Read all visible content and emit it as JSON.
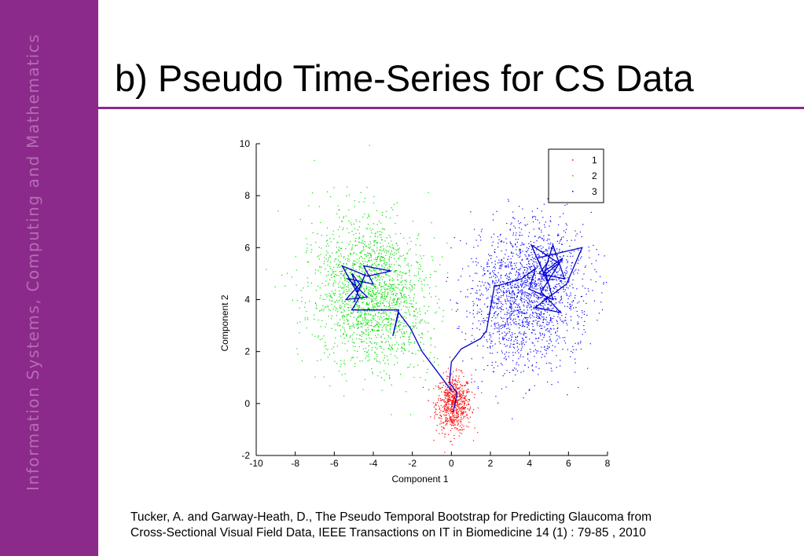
{
  "slide": {
    "sidebar_text": "Information Systems, Computing and Mathematics",
    "title": "b) Pseudo Time-Series for CS Data",
    "citation_line1": "Tucker, A. and Garway-Heath, D., The Pseudo Temporal Bootstrap for Predicting Glaucoma from",
    "citation_line2": "Cross-Sectional Visual Field Data, IEEE Transactions on IT in Biomedicine 14 (1) : 79-85 , 2010"
  },
  "colors": {
    "sidebar": "#8b2a8a",
    "cluster_1": "#ff0000",
    "cluster_2": "#00dd00",
    "cluster_3": "#0000ff",
    "trajectory": "#0000cc"
  },
  "chart_data": {
    "type": "scatter",
    "xlabel": "Component 1",
    "ylabel": "Component 2",
    "xlim": [
      -10,
      8
    ],
    "ylim": [
      -2,
      10
    ],
    "xticks": [
      -10,
      -8,
      -6,
      -4,
      -2,
      0,
      2,
      4,
      6,
      8
    ],
    "yticks": [
      -2,
      0,
      2,
      4,
      6,
      8,
      10
    ],
    "grid": false,
    "legend_position": "top-right",
    "series": [
      {
        "name": "1",
        "color": "#ff0000",
        "count": 700,
        "center": [
          0.1,
          0.0
        ],
        "spread": [
          0.45,
          0.55
        ],
        "tilt": 0
      },
      {
        "name": "2",
        "color": "#00dd00",
        "count": 1900,
        "center": [
          -4.2,
          4.3
        ],
        "spread": [
          1.5,
          1.35
        ],
        "tilt": -0.55
      },
      {
        "name": "3",
        "color": "#0000ff",
        "count": 1900,
        "center": [
          3.9,
          4.2
        ],
        "spread": [
          1.5,
          1.3
        ],
        "tilt": 0.6
      }
    ],
    "trajectory": {
      "color": "#0000cc",
      "points": [
        [
          0.1,
          -0.3
        ],
        [
          0.3,
          0.4
        ],
        [
          -0.1,
          0.8
        ],
        [
          0.0,
          1.6
        ],
        [
          0.5,
          2.1
        ],
        [
          1.5,
          2.5
        ],
        [
          1.8,
          2.8
        ],
        [
          2.2,
          4.5
        ],
        [
          3.6,
          4.8
        ],
        [
          4.3,
          5.2
        ],
        [
          4.0,
          4.4
        ],
        [
          5.2,
          4.0
        ],
        [
          4.8,
          5.1
        ],
        [
          5.7,
          5.6
        ],
        [
          4.6,
          4.3
        ],
        [
          5.6,
          3.5
        ],
        [
          4.3,
          3.7
        ],
        [
          5.9,
          4.6
        ],
        [
          6.7,
          6.0
        ],
        [
          4.4,
          5.6
        ],
        [
          4.9,
          4.7
        ],
        [
          4.1,
          6.1
        ],
        [
          5.5,
          5.4
        ],
        [
          4.7,
          4.9
        ],
        [
          5.2,
          6.1
        ],
        [
          5.8,
          4.8
        ],
        [
          4.5,
          5.0
        ],
        [
          5.0,
          5.5
        ]
      ],
      "green_points": [
        [
          0.0,
          0.5
        ],
        [
          -0.8,
          1.3
        ],
        [
          -1.5,
          2.0
        ],
        [
          -2.1,
          2.9
        ],
        [
          -2.7,
          3.5
        ],
        [
          -3.0,
          2.6
        ],
        [
          -2.7,
          3.6
        ],
        [
          -5.1,
          3.6
        ],
        [
          -4.7,
          4.1
        ],
        [
          -5.6,
          5.3
        ],
        [
          -4.3,
          4.9
        ],
        [
          -3.1,
          5.1
        ],
        [
          -4.5,
          5.3
        ],
        [
          -4.0,
          4.6
        ],
        [
          -5.3,
          4.8
        ],
        [
          -4.3,
          4.1
        ],
        [
          -5.4,
          4.0
        ],
        [
          -4.7,
          4.6
        ],
        [
          -5.1,
          5.0
        ],
        [
          -4.8,
          4.3
        ],
        [
          -4.4,
          5.0
        ],
        [
          -5.0,
          3.9
        ]
      ]
    },
    "legend": [
      {
        "label": "1",
        "color": "#ff0000"
      },
      {
        "label": "2",
        "color": "#00dd00"
      },
      {
        "label": "3",
        "color": "#0000ff"
      }
    ]
  }
}
